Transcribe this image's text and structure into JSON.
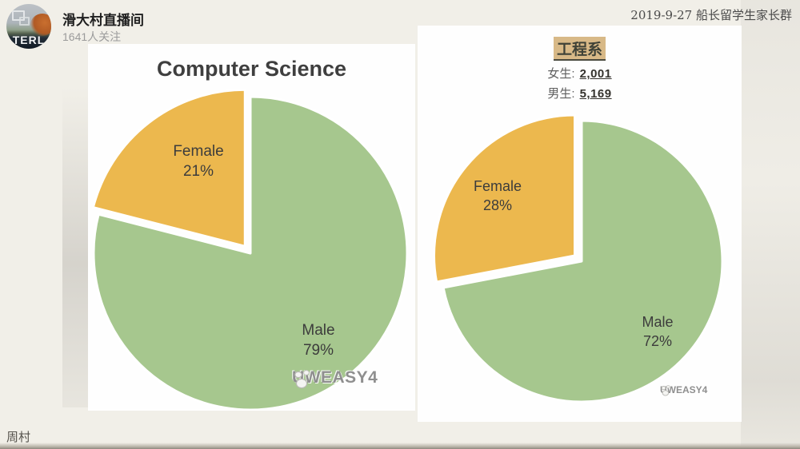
{
  "header": {
    "avatar_text": "TERL",
    "account_name": "滑大村直播间",
    "followers": "1641人关注",
    "date_group": "2019-9-27 船长留学生家长群"
  },
  "footer": {
    "author": "周村"
  },
  "chart_data": [
    {
      "type": "pie",
      "title": "Computer Science",
      "labels": [
        "Male",
        "Female"
      ],
      "values": [
        79,
        21
      ],
      "unit": "%",
      "legend_position": "none",
      "slices": [
        {
          "label": "Male",
          "value": 79,
          "color": "#a6c78e",
          "explode": 0
        },
        {
          "label": "Female",
          "value": 21,
          "color": "#ecb84e",
          "explode": 11
        }
      ],
      "data_labels": [
        {
          "line1": "Female",
          "line2": "21%"
        },
        {
          "line1": "Male",
          "line2": "79%"
        }
      ],
      "watermark": "UWEASY4"
    },
    {
      "type": "pie",
      "title": "工程系",
      "stats": [
        {
          "label": "女生:",
          "value": "2,001"
        },
        {
          "label": "男生:",
          "value": "5,169"
        }
      ],
      "labels": [
        "Male",
        "Female"
      ],
      "values": [
        72,
        28
      ],
      "unit": "%",
      "legend_position": "none",
      "slices": [
        {
          "label": "Male",
          "value": 72,
          "color": "#a6c78e",
          "explode": 0
        },
        {
          "label": "Female",
          "value": 28,
          "color": "#ecb84e",
          "explode": 11
        }
      ],
      "data_labels": [
        {
          "line1": "Female",
          "line2": "28%"
        },
        {
          "line1": "Male",
          "line2": "72%"
        }
      ],
      "watermark": "UWEASY4"
    }
  ]
}
